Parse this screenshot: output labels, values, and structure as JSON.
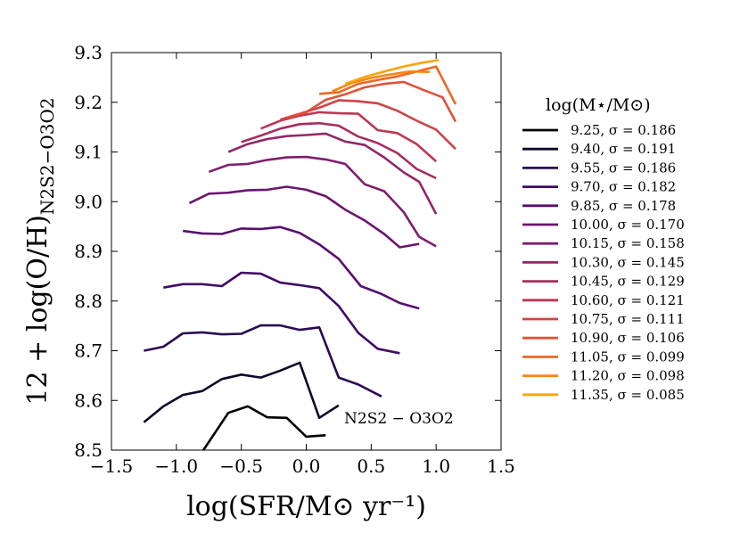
{
  "chart_data": {
    "type": "line",
    "xlabel": "log(SFR/M⊙ yr⁻¹)",
    "ylabel": "12 + log(O/H)",
    "ylabel_sub": "N2S2−O3O2",
    "xlim": [
      -1.5,
      1.5
    ],
    "ylim": [
      8.5,
      9.3
    ],
    "xticks": [
      -1.5,
      -1.0,
      -0.5,
      0.0,
      0.5,
      1.0,
      1.5
    ],
    "xtick_labels": [
      "−1.5",
      "−1.0",
      "−0.5",
      "0.0",
      "0.5",
      "1.0",
      "1.5"
    ],
    "yticks": [
      8.5,
      8.6,
      8.7,
      8.8,
      8.9,
      9.0,
      9.1,
      9.2,
      9.3
    ],
    "ytick_labels": [
      "8.5",
      "8.6",
      "8.7",
      "8.8",
      "8.9",
      "9.0",
      "9.1",
      "9.2",
      "9.3"
    ],
    "grid": false,
    "annotation": "N2S2 − O3O2",
    "legend": {
      "title": "log(M⋆/M⊙)",
      "placement": "outside-right"
    },
    "series": [
      {
        "name": "9.25",
        "sigma": "σ = 0.186",
        "color": "#000004",
        "x": [
          -0.8,
          -0.6,
          -0.45,
          -0.3,
          -0.15,
          0.0,
          0.15
        ],
        "y": [
          8.497,
          8.575,
          8.588,
          8.566,
          8.565,
          8.527,
          8.53
        ]
      },
      {
        "name": "9.40",
        "sigma": "σ = 0.191",
        "color": "#0d0829",
        "x": [
          -1.25,
          -1.1,
          -0.95,
          -0.8,
          -0.65,
          -0.5,
          -0.35,
          -0.2,
          -0.05,
          0.1,
          0.25
        ],
        "y": [
          8.556,
          8.588,
          8.611,
          8.619,
          8.643,
          8.652,
          8.646,
          8.66,
          8.676,
          8.565,
          8.59
        ]
      },
      {
        "name": "9.55",
        "sigma": "σ = 0.186",
        "color": "#280b53",
        "x": [
          -1.25,
          -1.1,
          -0.95,
          -0.8,
          -0.65,
          -0.5,
          -0.35,
          -0.2,
          -0.05,
          0.1,
          0.25,
          0.4,
          0.58
        ],
        "y": [
          8.7,
          8.708,
          8.735,
          8.737,
          8.733,
          8.734,
          8.751,
          8.751,
          8.742,
          8.747,
          8.646,
          8.632,
          8.608
        ]
      },
      {
        "name": "9.70",
        "sigma": "σ = 0.182",
        "color": "#410967",
        "x": [
          -1.1,
          -0.95,
          -0.8,
          -0.65,
          -0.5,
          -0.35,
          -0.2,
          -0.05,
          0.1,
          0.25,
          0.4,
          0.55,
          0.72
        ],
        "y": [
          8.827,
          8.834,
          8.834,
          8.83,
          8.857,
          8.855,
          8.837,
          8.832,
          8.826,
          8.79,
          8.736,
          8.704,
          8.695
        ]
      },
      {
        "name": "9.85",
        "sigma": "σ = 0.178",
        "color": "#57106e",
        "x": [
          -0.95,
          -0.8,
          -0.65,
          -0.5,
          -0.35,
          -0.2,
          -0.05,
          0.1,
          0.25,
          0.42,
          0.58,
          0.72,
          0.87
        ],
        "y": [
          8.941,
          8.936,
          8.935,
          8.946,
          8.945,
          8.949,
          8.937,
          8.914,
          8.885,
          8.83,
          8.814,
          8.796,
          8.785
        ]
      },
      {
        "name": "10.00",
        "sigma": "σ = 0.170",
        "color": "#6a176e",
        "x": [
          -0.9,
          -0.75,
          -0.6,
          -0.45,
          -0.3,
          -0.15,
          0.0,
          0.15,
          0.3,
          0.45,
          0.6,
          0.72,
          0.87
        ],
        "y": [
          8.997,
          9.016,
          9.018,
          9.023,
          9.024,
          9.03,
          9.024,
          9.011,
          8.984,
          8.962,
          8.935,
          8.908,
          8.915
        ]
      },
      {
        "name": "10.15",
        "sigma": "σ = 0.158",
        "color": "#7f1e6c",
        "x": [
          -0.75,
          -0.6,
          -0.45,
          -0.3,
          -0.15,
          0.0,
          0.15,
          0.3,
          0.45,
          0.6,
          0.75,
          0.87,
          1.0
        ],
        "y": [
          9.06,
          9.074,
          9.076,
          9.084,
          9.089,
          9.09,
          9.085,
          9.076,
          9.035,
          9.021,
          8.979,
          8.929,
          8.91
        ]
      },
      {
        "name": "10.30",
        "sigma": "σ = 0.145",
        "color": "#932667",
        "x": [
          -0.6,
          -0.45,
          -0.3,
          -0.15,
          0.0,
          0.15,
          0.3,
          0.45,
          0.6,
          0.75,
          0.87,
          1.0
        ],
        "y": [
          9.1,
          9.116,
          9.126,
          9.132,
          9.134,
          9.137,
          9.121,
          9.114,
          9.089,
          9.059,
          9.04,
          8.975
        ]
      },
      {
        "name": "10.45",
        "sigma": "σ = 0.129",
        "color": "#a72d5e",
        "x": [
          -0.5,
          -0.35,
          -0.2,
          -0.05,
          0.1,
          0.25,
          0.4,
          0.55,
          0.7,
          0.85,
          1.0
        ],
        "y": [
          9.12,
          9.133,
          9.147,
          9.156,
          9.158,
          9.153,
          9.131,
          9.118,
          9.098,
          9.066,
          9.047
        ]
      },
      {
        "name": "10.60",
        "sigma": "σ = 0.121",
        "color": "#bc3754",
        "x": [
          -0.35,
          -0.2,
          -0.05,
          0.1,
          0.25,
          0.4,
          0.55,
          0.7,
          0.85,
          1.0
        ],
        "y": [
          9.147,
          9.163,
          9.173,
          9.18,
          9.178,
          9.177,
          9.144,
          9.138,
          9.116,
          9.081
        ]
      },
      {
        "name": "10.75",
        "sigma": "σ = 0.111",
        "color": "#cf4446",
        "x": [
          -0.2,
          -0.05,
          0.1,
          0.25,
          0.4,
          0.55,
          0.7,
          0.85,
          1.0,
          1.15
        ],
        "y": [
          9.165,
          9.177,
          9.189,
          9.204,
          9.202,
          9.198,
          9.183,
          9.163,
          9.145,
          9.106
        ]
      },
      {
        "name": "10.90",
        "sigma": "σ = 0.106",
        "color": "#e0523a",
        "x": [
          -0.15,
          0.0,
          0.15,
          0.3,
          0.45,
          0.6,
          0.75,
          0.9,
          1.05,
          1.15
        ],
        "y": [
          9.169,
          9.18,
          9.205,
          9.216,
          9.23,
          9.237,
          9.241,
          9.225,
          9.21,
          9.161
        ]
      },
      {
        "name": "11.05",
        "sigma": "σ = 0.099",
        "color": "#ed6925",
        "x": [
          0.1,
          0.25,
          0.4,
          0.55,
          0.7,
          0.85,
          1.0,
          1.15
        ],
        "y": [
          9.217,
          9.22,
          9.237,
          9.245,
          9.252,
          9.262,
          9.272,
          9.196
        ]
      },
      {
        "name": "11.20",
        "sigma": "σ = 0.098",
        "color": "#f8850f",
        "x": [
          0.2,
          0.35,
          0.5,
          0.65,
          0.8,
          0.95
        ],
        "y": [
          9.222,
          9.239,
          9.249,
          9.256,
          9.262,
          9.261
        ]
      },
      {
        "name": "11.35",
        "sigma": "σ = 0.085",
        "color": "#fba40a",
        "x": [
          0.3,
          0.45,
          0.6,
          0.75,
          0.9,
          1.02
        ],
        "y": [
          9.237,
          9.251,
          9.262,
          9.272,
          9.28,
          9.285
        ]
      }
    ]
  }
}
